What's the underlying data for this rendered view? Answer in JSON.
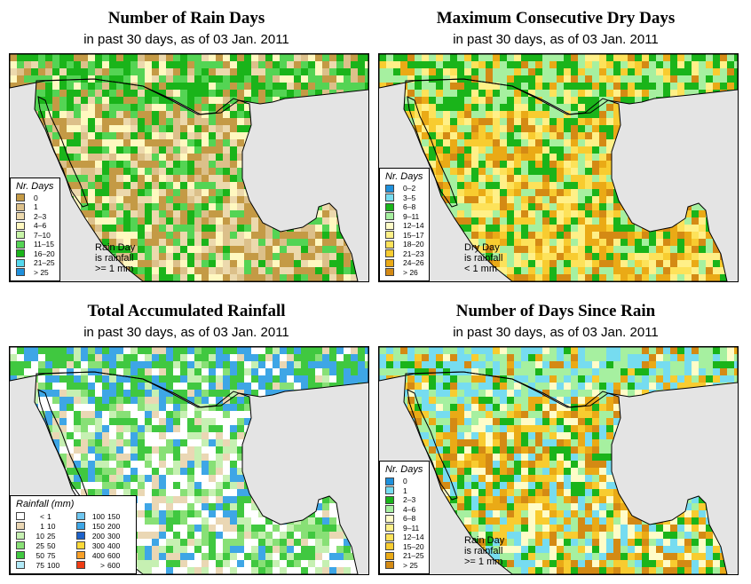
{
  "panels": [
    {
      "title": "Number of Rain Days",
      "subtitle": "in past 30 days, as of  03 Jan. 2011",
      "legend_title": "Nr. Days",
      "legend": [
        {
          "label": "0",
          "color": "#c49a45"
        },
        {
          "label": "1",
          "color": "#dcc08a"
        },
        {
          "label": "2–3",
          "color": "#ecd9ad"
        },
        {
          "label": "4–6",
          "color": "#fff8c0"
        },
        {
          "label": "7–10",
          "color": "#c8f5a8"
        },
        {
          "label": "11–15",
          "color": "#54d454"
        },
        {
          "label": "16–20",
          "color": "#1ab41a"
        },
        {
          "label": "21–25",
          "color": "#54d8ee"
        },
        {
          "label": "> 25",
          "color": "#1e90dc"
        }
      ],
      "note": [
        "Rain Day",
        "is rainfall",
        ">= 1 mm"
      ]
    },
    {
      "title": "Maximum Consecutive Dry Days",
      "subtitle": "in past 30 days, as of  03 Jan. 2011",
      "legend_title": "Nr. Days",
      "legend": [
        {
          "label": "0–2",
          "color": "#1e90dc"
        },
        {
          "label": "3–5",
          "color": "#76dcf0"
        },
        {
          "label": "6–8",
          "color": "#1ab41a"
        },
        {
          "label": "9–11",
          "color": "#a6f0a0"
        },
        {
          "label": "12–14",
          "color": "#fffcc8"
        },
        {
          "label": "15–17",
          "color": "#fff088"
        },
        {
          "label": "18–20",
          "color": "#fde25a"
        },
        {
          "label": "21–23",
          "color": "#f8cc30"
        },
        {
          "label": "24–26",
          "color": "#eaaa16"
        },
        {
          "label": "> 26",
          "color": "#d48a14"
        }
      ],
      "note": [
        "Dry Day",
        "is rainfall",
        "< 1 mm"
      ]
    },
    {
      "title": "Total Accumulated Rainfall",
      "subtitle": "in past 30 days, as of  03 Jan. 2011",
      "legend_title": "Rainfall (mm)",
      "legend": [
        {
          "a": "<",
          "b": "1",
          "color": "#ffffff"
        },
        {
          "a": "1",
          "b": "10",
          "color": "#ead7b4"
        },
        {
          "a": "10",
          "b": "25",
          "color": "#c6f0b2"
        },
        {
          "a": "25",
          "b": "50",
          "color": "#88e076"
        },
        {
          "a": "50",
          "b": "75",
          "color": "#40c840"
        },
        {
          "a": "75",
          "b": "100",
          "color": "#b2eaf8"
        },
        {
          "a": "100",
          "b": "150",
          "color": "#6ec6f0"
        },
        {
          "a": "150",
          "b": "200",
          "color": "#3ea6e6"
        },
        {
          "a": "200",
          "b": "300",
          "color": "#1e62c8"
        },
        {
          "a": "300",
          "b": "400",
          "color": "#fcd838"
        },
        {
          "a": "400",
          "b": "600",
          "color": "#f8a028"
        },
        {
          "a": ">",
          "b": "600",
          "color": "#f03c14"
        }
      ]
    },
    {
      "title": "Number of Days Since Rain",
      "subtitle": "in past 30 days, as of  03 Jan. 2011",
      "legend_title": "Nr. Days",
      "legend": [
        {
          "label": "0",
          "color": "#1e90dc"
        },
        {
          "label": "1",
          "color": "#76dcf0"
        },
        {
          "label": "2–3",
          "color": "#1ab41a"
        },
        {
          "label": "4–6",
          "color": "#a6f0a0"
        },
        {
          "label": "6–8",
          "color": "#fffcc8"
        },
        {
          "label": "9–11",
          "color": "#fff088"
        },
        {
          "label": "12–14",
          "color": "#fde25a"
        },
        {
          "label": "15–20",
          "color": "#f8cc30"
        },
        {
          "label": "21–25",
          "color": "#eaaa16"
        },
        {
          "label": "> 25",
          "color": "#d48a14"
        }
      ],
      "note": [
        "Rain Day",
        "is rainfall",
        ">= 1 mm"
      ]
    }
  ],
  "colors": {
    "ocean": "#e4e4e4",
    "outline": "#000000"
  },
  "map_fill_palettes": {
    "rain_days": [
      "#c49a45",
      "#c49a45",
      "#dcc08a",
      "#ecd9ad",
      "#fff8c0",
      "#54d454",
      "#1ab41a"
    ],
    "dry_days": [
      "#d48a14",
      "#eaaa16",
      "#f8cc30",
      "#fde25a",
      "#fff088",
      "#1ab41a",
      "#a6f0a0"
    ],
    "rainfall": [
      "#ffffff",
      "#ffffff",
      "#ead7b4",
      "#c6f0b2",
      "#88e076",
      "#40c840",
      "#3ea6e6"
    ],
    "since_rain": [
      "#d48a14",
      "#eaaa16",
      "#f8cc30",
      "#fffcc8",
      "#1ab41a",
      "#76dcf0",
      "#a6f0a0"
    ]
  }
}
